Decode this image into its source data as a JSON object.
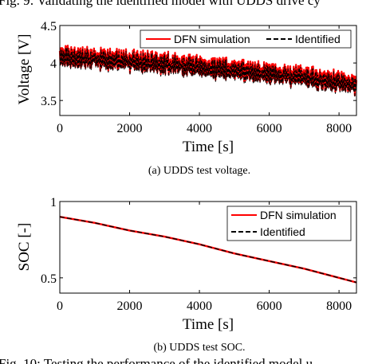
{
  "header_fragment": "Fig. 9: Validating the identified model with UDDS drive cy",
  "footer_fragment": "Fig. 10: Testing the performance of the identified model u",
  "colors": {
    "simulation": "#ff0000",
    "identified": "#000000"
  },
  "chart_data": [
    {
      "type": "line",
      "caption": "(a) UDDS test voltage.",
      "xlabel": "Time [s]",
      "ylabel": "Voltage [V]",
      "xlim": [
        0,
        8500
      ],
      "ylim": [
        3.3,
        4.5
      ],
      "xticks": [
        0,
        2000,
        4000,
        6000,
        8000
      ],
      "yticks": [
        3.5,
        4,
        4.5
      ],
      "xtick_labels": [
        "0",
        "2000",
        "4000",
        "6000",
        "8000"
      ],
      "ytick_labels": [
        "3.5",
        "4",
        "4.5"
      ],
      "legend": "top-right",
      "grid": false,
      "trend_x": [
        0,
        1000,
        2000,
        3000,
        4000,
        5000,
        6000,
        7000,
        8000,
        8500
      ],
      "trend_y": [
        4.08,
        4.06,
        4.03,
        4.0,
        3.96,
        3.92,
        3.87,
        3.82,
        3.76,
        3.72
      ],
      "noise_amplitude": 0.14,
      "series": [
        {
          "name": "DFN simulation",
          "style": "solid"
        },
        {
          "name": "Identified",
          "style": "dashed"
        }
      ]
    },
    {
      "type": "line",
      "caption": "(b) UDDS test SOC.",
      "xlabel": "Time [s]",
      "ylabel": "SOC [-]",
      "xlim": [
        0,
        8500
      ],
      "ylim": [
        0.4,
        1.0
      ],
      "xticks": [
        0,
        2000,
        4000,
        6000,
        8000
      ],
      "yticks": [
        0.5,
        1
      ],
      "xtick_labels": [
        "0",
        "2000",
        "4000",
        "6000",
        "8000"
      ],
      "ytick_labels": [
        "0.5",
        "1"
      ],
      "legend": "top-right",
      "grid": false,
      "x": [
        0,
        1000,
        2000,
        3000,
        4000,
        5000,
        6000,
        7000,
        8000,
        8500
      ],
      "series": [
        {
          "name": "DFN simulation",
          "style": "solid",
          "values": [
            0.9,
            0.86,
            0.81,
            0.77,
            0.72,
            0.66,
            0.61,
            0.56,
            0.5,
            0.47
          ]
        },
        {
          "name": "Identified",
          "style": "dashed",
          "values": [
            0.9,
            0.86,
            0.81,
            0.77,
            0.72,
            0.66,
            0.61,
            0.56,
            0.5,
            0.47
          ]
        }
      ]
    }
  ]
}
